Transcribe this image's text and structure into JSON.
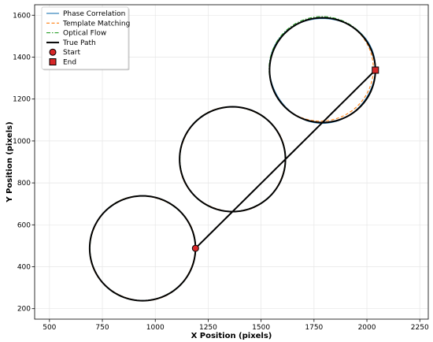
{
  "chart_data": {
    "type": "line",
    "title": "",
    "xlabel": "X Position (pixels)",
    "ylabel": "Y Position (pixels)",
    "xlim": [
      430,
      2290
    ],
    "ylim": [
      150,
      1650
    ],
    "x_ticks": [
      500,
      750,
      1000,
      1250,
      1500,
      1750,
      2000,
      2250
    ],
    "y_ticks": [
      200,
      400,
      600,
      800,
      1000,
      1200,
      1400,
      1600
    ],
    "grid": true,
    "legend_position": "top-left",
    "path": {
      "start": [
        1190,
        488
      ],
      "end": [
        2040,
        1338
      ],
      "loops": [
        {
          "center": [
            940,
            488
          ],
          "radius": 250
        },
        {
          "center": [
            1365,
            913
          ],
          "radius": 250
        },
        {
          "center": [
            1790,
            1338
          ],
          "radius": 250
        }
      ]
    },
    "series": [
      {
        "name": "Phase Correlation",
        "color": "#1f77b4",
        "style": "solid"
      },
      {
        "name": "Template Matching",
        "color": "#ff7f0e",
        "style": "dashed"
      },
      {
        "name": "Optical Flow",
        "color": "#2ca02c",
        "style": "dashdot"
      },
      {
        "name": "True Path",
        "color": "#000000",
        "style": "solid-thick"
      }
    ],
    "markers": [
      {
        "name": "Start",
        "shape": "circle",
        "color": "#d62728",
        "x": 1190,
        "y": 488
      },
      {
        "name": "End",
        "shape": "square",
        "color": "#d62728",
        "x": 2040,
        "y": 1338
      }
    ]
  }
}
